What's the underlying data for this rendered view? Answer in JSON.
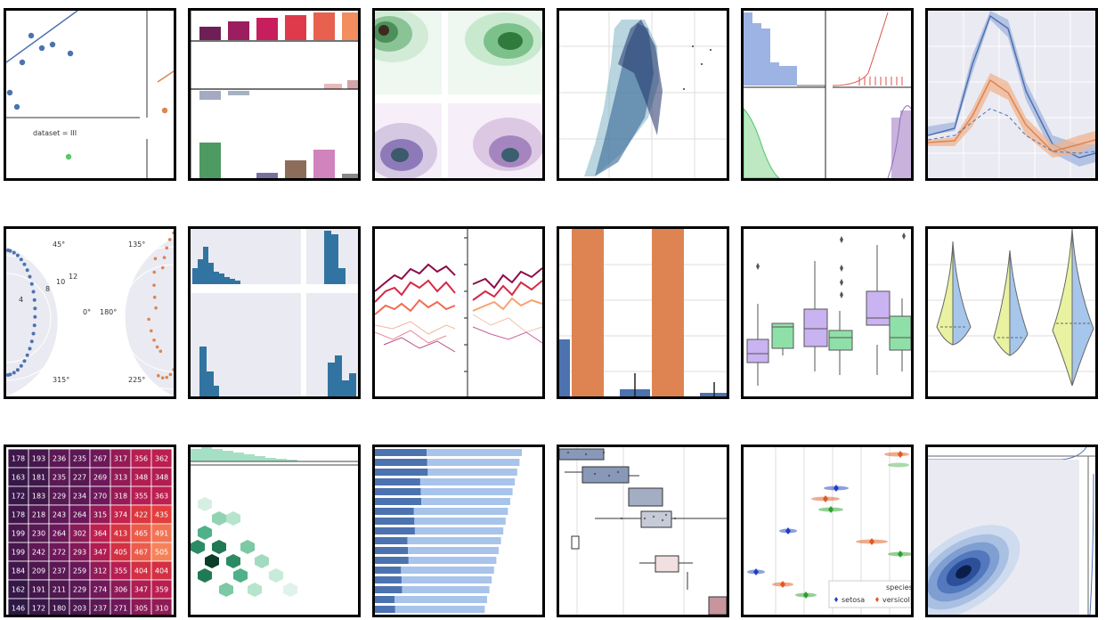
{
  "panels": {
    "anscombe": {
      "facet_label": "dataset = III",
      "colors": [
        "#4c72b0",
        "#dd8452",
        "#55cc66"
      ],
      "points_a": [
        [
          4,
          92
        ],
        [
          28,
          28
        ],
        [
          40,
          42
        ],
        [
          18,
          58
        ],
        [
          52,
          38
        ],
        [
          72,
          48
        ]
      ],
      "points_b": [
        [
          12,
          108
        ]
      ],
      "points_c": [
        [
          70,
          164
        ]
      ]
    },
    "polar": {
      "labels": [
        "45°",
        "12",
        "10",
        "8",
        "4",
        "0°",
        "315°",
        "135°",
        "180°",
        "225°"
      ],
      "colors": [
        "#4c72b0",
        "#dd8452"
      ]
    },
    "heatmap": {
      "type": "heatmap",
      "values": [
        [
          178,
          193,
          236,
          235,
          267,
          317,
          356,
          362
        ],
        [
          163,
          181,
          235,
          227,
          269,
          313,
          348,
          348
        ],
        [
          172,
          183,
          229,
          234,
          270,
          318,
          355,
          363
        ],
        [
          178,
          218,
          243,
          264,
          315,
          374,
          422,
          435
        ],
        [
          199,
          230,
          264,
          302,
          364,
          413,
          465,
          491
        ],
        [
          199,
          242,
          272,
          293,
          347,
          405,
          467,
          505
        ],
        [
          184,
          209,
          237,
          259,
          312,
          355,
          404,
          404
        ],
        [
          162,
          191,
          211,
          229,
          274,
          306,
          347,
          359
        ],
        [
          146,
          172,
          180,
          203,
          237,
          271,
          305,
          310
        ]
      ]
    },
    "dot_legend": {
      "title": "species",
      "entries": [
        "setosa",
        "versicol"
      ],
      "colors": [
        "#1f3fbf",
        "#dd5a1f",
        "#2ca02c"
      ]
    }
  }
}
